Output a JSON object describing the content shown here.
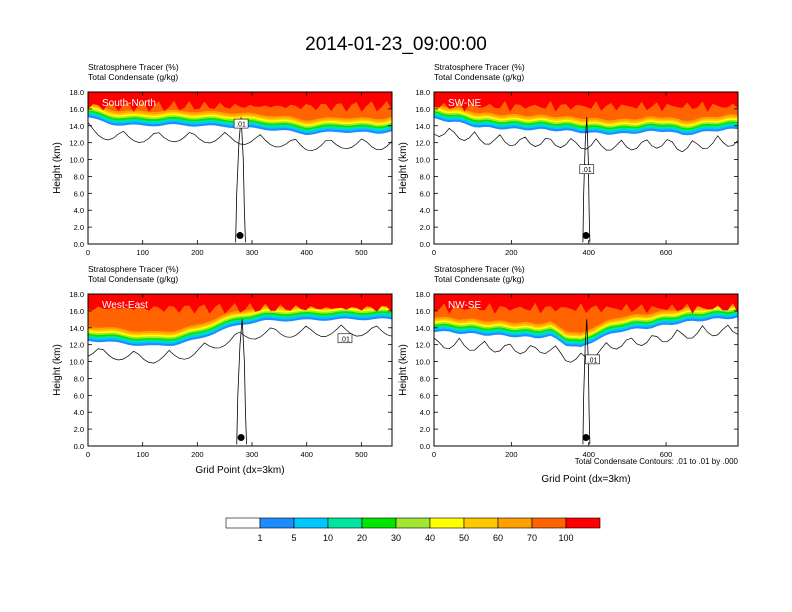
{
  "title": "2014-01-23_09:00:00",
  "footnote": "Total Condensate Contours: .01 to .01 by .000",
  "colors": {
    "fill_levels": [
      "#ffffff",
      "#1e8cff",
      "#00c8ff",
      "#00e6a0",
      "#00e600",
      "#a0e632",
      "#ffff00",
      "#ffc800",
      "#ffa000",
      "#ff6400",
      "#ff0000"
    ],
    "contour": "#000000",
    "marker": "#000000"
  },
  "colorbar": {
    "labels": [
      "1",
      "5",
      "10",
      "20",
      "30",
      "40",
      "50",
      "60",
      "70",
      "100"
    ]
  },
  "chart_data": [
    {
      "type": "heatmap",
      "title": "Stratosphere Tracer   (%)",
      "subtitle": "Total Condensate   (g/kg)",
      "panel_label": "South-North",
      "xlabel": "",
      "ylabel": "Height (km)",
      "xlim": [
        0,
        556
      ],
      "ylim": [
        0,
        18
      ],
      "x_ticks": [
        "0",
        "100",
        "200",
        "300",
        "400",
        "500"
      ],
      "y_ticks": [
        "0.0",
        "2.0",
        "4.0",
        "6.0",
        "8.0",
        "10.0",
        "12.0",
        "14.0",
        "16.0",
        "18.0"
      ],
      "tracer_base_km": [
        [
          0,
          15.0
        ],
        [
          20,
          14.6
        ],
        [
          40,
          14.2
        ],
        [
          60,
          14.1
        ],
        [
          100,
          14.0
        ],
        [
          150,
          14.1
        ],
        [
          200,
          14.0
        ],
        [
          250,
          13.9
        ],
        [
          280,
          13.8
        ],
        [
          320,
          13.6
        ],
        [
          360,
          13.4
        ],
        [
          400,
          13.0
        ],
        [
          420,
          13.1
        ],
        [
          460,
          13.3
        ],
        [
          500,
          13.2
        ],
        [
          530,
          13.1
        ],
        [
          556,
          13.4
        ]
      ],
      "contour_label": ".01",
      "contour_label_at": [
        280,
        14.2
      ],
      "marker": [
        278,
        1.0
      ]
    },
    {
      "type": "heatmap",
      "title": "Stratosphere Tracer   (%)",
      "subtitle": "Total Condensate   (g/kg)",
      "panel_label": "SW-NE",
      "xlabel": "",
      "ylabel": "Height (km)",
      "xlim": [
        0,
        786
      ],
      "ylim": [
        0,
        18
      ],
      "x_ticks": [
        "0",
        "200",
        "400",
        "600"
      ],
      "y_ticks": [
        "0.0",
        "2.0",
        "4.0",
        "6.0",
        "8.0",
        "10.0",
        "12.0",
        "14.0",
        "16.0",
        "18.0"
      ],
      "tracer_base_km": [
        [
          0,
          14.8
        ],
        [
          60,
          14.4
        ],
        [
          120,
          13.8
        ],
        [
          200,
          13.6
        ],
        [
          300,
          13.5
        ],
        [
          360,
          13.3
        ],
        [
          420,
          13.1
        ],
        [
          480,
          13.0
        ],
        [
          560,
          13.3
        ],
        [
          600,
          13.4
        ],
        [
          640,
          12.9
        ],
        [
          680,
          13.1
        ],
        [
          720,
          13.4
        ],
        [
          786,
          13.6
        ]
      ],
      "contour_label": ".01",
      "contour_label_at": [
        395,
        8.8
      ],
      "marker": [
        393,
        1.0
      ]
    },
    {
      "type": "heatmap",
      "title": "Stratosphere Tracer   (%)",
      "subtitle": "Total Condensate   (g/kg)",
      "panel_label": "West-East",
      "xlabel": "Grid Point (dx=3km)",
      "ylabel": "Height (km)",
      "xlim": [
        0,
        556
      ],
      "ylim": [
        0,
        18
      ],
      "x_ticks": [
        "0",
        "100",
        "200",
        "300",
        "400",
        "500"
      ],
      "y_ticks": [
        "0.0",
        "2.0",
        "4.0",
        "6.0",
        "8.0",
        "10.0",
        "12.0",
        "14.0",
        "16.0",
        "18.0"
      ],
      "tracer_base_km": [
        [
          0,
          12.5
        ],
        [
          40,
          12.3
        ],
        [
          80,
          12.0
        ],
        [
          120,
          11.8
        ],
        [
          160,
          12.0
        ],
        [
          200,
          12.6
        ],
        [
          240,
          13.6
        ],
        [
          280,
          14.4
        ],
        [
          320,
          14.8
        ],
        [
          400,
          14.9
        ],
        [
          480,
          15.0
        ],
        [
          556,
          15.0
        ]
      ],
      "contour_label": ".01",
      "contour_label_at": [
        470,
        12.7
      ],
      "marker": [
        280,
        1.0
      ]
    },
    {
      "type": "heatmap",
      "title": "Stratosphere Tracer   (%)",
      "subtitle": "Total Condensate   (g/kg)",
      "panel_label": "NW-SE",
      "xlabel": "Grid Point (dx=3km)",
      "ylabel": "Height (km)",
      "xlim": [
        0,
        786
      ],
      "ylim": [
        0,
        18
      ],
      "x_ticks": [
        "0",
        "200",
        "400",
        "600"
      ],
      "y_ticks": [
        "0.0",
        "2.0",
        "4.0",
        "6.0",
        "8.0",
        "10.0",
        "12.0",
        "14.0",
        "16.0",
        "18.0"
      ],
      "tracer_base_km": [
        [
          0,
          13.6
        ],
        [
          60,
          13.4
        ],
        [
          120,
          13.2
        ],
        [
          200,
          13.0
        ],
        [
          260,
          12.8
        ],
        [
          300,
          13.0
        ],
        [
          340,
          12.0
        ],
        [
          380,
          11.6
        ],
        [
          420,
          12.6
        ],
        [
          480,
          13.6
        ],
        [
          560,
          14.0
        ],
        [
          640,
          14.6
        ],
        [
          720,
          15.0
        ],
        [
          786,
          15.2
        ]
      ],
      "contour_label": ".01",
      "contour_label_at": [
        410,
        10.2
      ],
      "marker": [
        393,
        1.0
      ]
    }
  ]
}
